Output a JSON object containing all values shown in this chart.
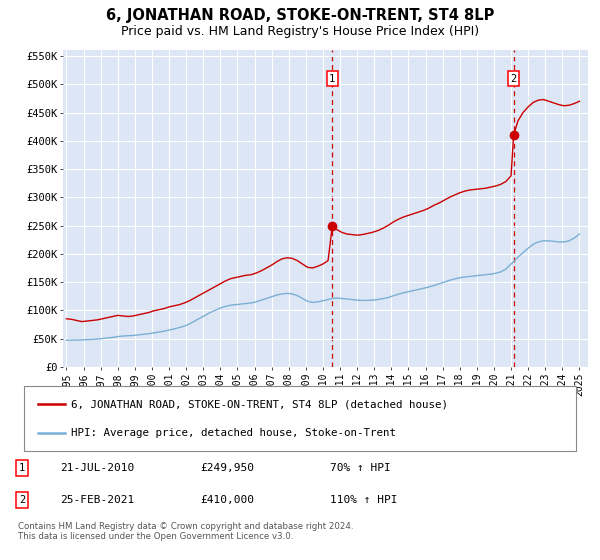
{
  "title": "6, JONATHAN ROAD, STOKE-ON-TRENT, ST4 8LP",
  "subtitle": "Price paid vs. HM Land Registry's House Price Index (HPI)",
  "title_fontsize": 10.5,
  "subtitle_fontsize": 9,
  "background_color": "#dce6f5",
  "ylim": [
    0,
    560000
  ],
  "xlim_left": 1994.8,
  "xlim_right": 2025.5,
  "yticks": [
    0,
    50000,
    100000,
    150000,
    200000,
    250000,
    300000,
    350000,
    400000,
    450000,
    500000,
    550000
  ],
  "ytick_labels": [
    "£0",
    "£50K",
    "£100K",
    "£150K",
    "£200K",
    "£250K",
    "£300K",
    "£350K",
    "£400K",
    "£450K",
    "£500K",
    "£550K"
  ],
  "xticks": [
    1995,
    1996,
    1997,
    1998,
    1999,
    2000,
    2001,
    2002,
    2003,
    2004,
    2005,
    2006,
    2007,
    2008,
    2009,
    2010,
    2011,
    2012,
    2013,
    2014,
    2015,
    2016,
    2017,
    2018,
    2019,
    2020,
    2021,
    2022,
    2023,
    2024,
    2025
  ],
  "grid_color": "#ffffff",
  "line_color_red": "#cc0000",
  "line_color_blue": "#7bafd4",
  "transaction1_x": 2010.55,
  "transaction1_y": 249950,
  "transaction1_label": "1",
  "transaction2_x": 2021.15,
  "transaction2_y": 410000,
  "transaction2_label": "2",
  "legend_label_red": "6, JONATHAN ROAD, STOKE-ON-TRENT, ST4 8LP (detached house)",
  "legend_label_blue": "HPI: Average price, detached house, Stoke-on-Trent",
  "annot1_label": "1",
  "annot1_date": "21-JUL-2010",
  "annot1_price": "£249,950",
  "annot1_hpi": "70% ↑ HPI",
  "annot2_label": "2",
  "annot2_date": "25-FEB-2021",
  "annot2_price": "£410,000",
  "annot2_hpi": "110% ↑ HPI",
  "footer": "Contains HM Land Registry data © Crown copyright and database right 2024.\nThis data is licensed under the Open Government Licence v3.0.",
  "red_hpi_data": [
    [
      1995.0,
      85000
    ],
    [
      1995.3,
      84000
    ],
    [
      1995.6,
      82000
    ],
    [
      1995.9,
      80000
    ],
    [
      1996.2,
      81000
    ],
    [
      1996.5,
      82000
    ],
    [
      1996.8,
      83000
    ],
    [
      1997.1,
      85000
    ],
    [
      1997.4,
      87000
    ],
    [
      1997.7,
      89000
    ],
    [
      1998.0,
      91000
    ],
    [
      1998.3,
      90000
    ],
    [
      1998.6,
      89000
    ],
    [
      1998.9,
      90000
    ],
    [
      1999.2,
      92000
    ],
    [
      1999.5,
      94000
    ],
    [
      1999.8,
      96000
    ],
    [
      2000.1,
      99000
    ],
    [
      2000.4,
      101000
    ],
    [
      2000.7,
      103000
    ],
    [
      2001.0,
      106000
    ],
    [
      2001.3,
      108000
    ],
    [
      2001.6,
      110000
    ],
    [
      2001.9,
      113000
    ],
    [
      2002.2,
      117000
    ],
    [
      2002.5,
      122000
    ],
    [
      2002.8,
      127000
    ],
    [
      2003.1,
      132000
    ],
    [
      2003.4,
      137000
    ],
    [
      2003.7,
      142000
    ],
    [
      2004.0,
      147000
    ],
    [
      2004.3,
      152000
    ],
    [
      2004.6,
      156000
    ],
    [
      2004.9,
      158000
    ],
    [
      2005.2,
      160000
    ],
    [
      2005.5,
      162000
    ],
    [
      2005.8,
      163000
    ],
    [
      2006.1,
      166000
    ],
    [
      2006.4,
      170000
    ],
    [
      2006.7,
      175000
    ],
    [
      2007.0,
      180000
    ],
    [
      2007.3,
      186000
    ],
    [
      2007.6,
      191000
    ],
    [
      2007.9,
      193000
    ],
    [
      2008.2,
      192000
    ],
    [
      2008.5,
      188000
    ],
    [
      2008.8,
      182000
    ],
    [
      2009.1,
      176000
    ],
    [
      2009.4,
      175000
    ],
    [
      2009.7,
      178000
    ],
    [
      2010.0,
      182000
    ],
    [
      2010.3,
      188000
    ],
    [
      2010.55,
      249950
    ],
    [
      2010.8,
      243000
    ],
    [
      2011.1,
      238000
    ],
    [
      2011.4,
      235000
    ],
    [
      2011.7,
      234000
    ],
    [
      2012.0,
      233000
    ],
    [
      2012.3,
      234000
    ],
    [
      2012.6,
      236000
    ],
    [
      2012.9,
      238000
    ],
    [
      2013.2,
      241000
    ],
    [
      2013.5,
      245000
    ],
    [
      2013.8,
      250000
    ],
    [
      2014.1,
      256000
    ],
    [
      2014.4,
      261000
    ],
    [
      2014.7,
      265000
    ],
    [
      2015.0,
      268000
    ],
    [
      2015.3,
      271000
    ],
    [
      2015.6,
      274000
    ],
    [
      2015.9,
      277000
    ],
    [
      2016.2,
      281000
    ],
    [
      2016.5,
      286000
    ],
    [
      2016.8,
      290000
    ],
    [
      2017.1,
      295000
    ],
    [
      2017.4,
      300000
    ],
    [
      2017.7,
      304000
    ],
    [
      2018.0,
      308000
    ],
    [
      2018.3,
      311000
    ],
    [
      2018.6,
      313000
    ],
    [
      2018.9,
      314000
    ],
    [
      2019.2,
      315000
    ],
    [
      2019.5,
      316000
    ],
    [
      2019.8,
      318000
    ],
    [
      2020.1,
      320000
    ],
    [
      2020.4,
      323000
    ],
    [
      2020.7,
      328000
    ],
    [
      2021.0,
      338000
    ],
    [
      2021.15,
      410000
    ],
    [
      2021.4,
      435000
    ],
    [
      2021.7,
      450000
    ],
    [
      2022.0,
      460000
    ],
    [
      2022.3,
      468000
    ],
    [
      2022.6,
      472000
    ],
    [
      2022.9,
      473000
    ],
    [
      2023.2,
      470000
    ],
    [
      2023.5,
      467000
    ],
    [
      2023.8,
      464000
    ],
    [
      2024.1,
      462000
    ],
    [
      2024.4,
      463000
    ],
    [
      2024.7,
      466000
    ],
    [
      2025.0,
      470000
    ]
  ],
  "blue_hpi_data": [
    [
      1995.0,
      47000
    ],
    [
      1995.3,
      47200
    ],
    [
      1995.6,
      47400
    ],
    [
      1995.9,
      47600
    ],
    [
      1996.2,
      48000
    ],
    [
      1996.5,
      48500
    ],
    [
      1996.8,
      49000
    ],
    [
      1997.1,
      50000
    ],
    [
      1997.4,
      51000
    ],
    [
      1997.7,
      52000
    ],
    [
      1998.0,
      53500
    ],
    [
      1998.3,
      54500
    ],
    [
      1998.6,
      55000
    ],
    [
      1998.9,
      55500
    ],
    [
      1999.2,
      56500
    ],
    [
      1999.5,
      57500
    ],
    [
      1999.8,
      58500
    ],
    [
      2000.1,
      60000
    ],
    [
      2000.4,
      61500
    ],
    [
      2000.7,
      63000
    ],
    [
      2001.0,
      65000
    ],
    [
      2001.3,
      67000
    ],
    [
      2001.6,
      69500
    ],
    [
      2001.9,
      72000
    ],
    [
      2002.2,
      76000
    ],
    [
      2002.5,
      81000
    ],
    [
      2002.8,
      86000
    ],
    [
      2003.1,
      91000
    ],
    [
      2003.4,
      96000
    ],
    [
      2003.7,
      100000
    ],
    [
      2004.0,
      104000
    ],
    [
      2004.3,
      107000
    ],
    [
      2004.6,
      109000
    ],
    [
      2004.9,
      110000
    ],
    [
      2005.2,
      111000
    ],
    [
      2005.5,
      112000
    ],
    [
      2005.8,
      113000
    ],
    [
      2006.1,
      115000
    ],
    [
      2006.4,
      118000
    ],
    [
      2006.7,
      121000
    ],
    [
      2007.0,
      124000
    ],
    [
      2007.3,
      127000
    ],
    [
      2007.6,
      129000
    ],
    [
      2007.9,
      130000
    ],
    [
      2008.2,
      129000
    ],
    [
      2008.5,
      126000
    ],
    [
      2008.8,
      121000
    ],
    [
      2009.1,
      116000
    ],
    [
      2009.4,
      114000
    ],
    [
      2009.7,
      115000
    ],
    [
      2010.0,
      117000
    ],
    [
      2010.3,
      119000
    ],
    [
      2010.55,
      121000
    ],
    [
      2010.8,
      121500
    ],
    [
      2011.1,
      121000
    ],
    [
      2011.4,
      120000
    ],
    [
      2011.7,
      119000
    ],
    [
      2012.0,
      118000
    ],
    [
      2012.3,
      117500
    ],
    [
      2012.6,
      117500
    ],
    [
      2012.9,
      118000
    ],
    [
      2013.2,
      119000
    ],
    [
      2013.5,
      120500
    ],
    [
      2013.8,
      122500
    ],
    [
      2014.1,
      125500
    ],
    [
      2014.4,
      128500
    ],
    [
      2014.7,
      131000
    ],
    [
      2015.0,
      133000
    ],
    [
      2015.3,
      135000
    ],
    [
      2015.6,
      137000
    ],
    [
      2015.9,
      139000
    ],
    [
      2016.2,
      141500
    ],
    [
      2016.5,
      144000
    ],
    [
      2016.8,
      147000
    ],
    [
      2017.1,
      150000
    ],
    [
      2017.4,
      153000
    ],
    [
      2017.7,
      155500
    ],
    [
      2018.0,
      157500
    ],
    [
      2018.3,
      159000
    ],
    [
      2018.6,
      160000
    ],
    [
      2018.9,
      161000
    ],
    [
      2019.2,
      162000
    ],
    [
      2019.5,
      163000
    ],
    [
      2019.8,
      164000
    ],
    [
      2020.1,
      165500
    ],
    [
      2020.4,
      168000
    ],
    [
      2020.7,
      173000
    ],
    [
      2021.0,
      182000
    ],
    [
      2021.15,
      186000
    ],
    [
      2021.4,
      194000
    ],
    [
      2021.7,
      202000
    ],
    [
      2022.0,
      210000
    ],
    [
      2022.3,
      217000
    ],
    [
      2022.6,
      221000
    ],
    [
      2022.9,
      223000
    ],
    [
      2023.2,
      223000
    ],
    [
      2023.5,
      222000
    ],
    [
      2023.8,
      221000
    ],
    [
      2024.1,
      221000
    ],
    [
      2024.4,
      223000
    ],
    [
      2024.7,
      228000
    ],
    [
      2025.0,
      235000
    ]
  ]
}
